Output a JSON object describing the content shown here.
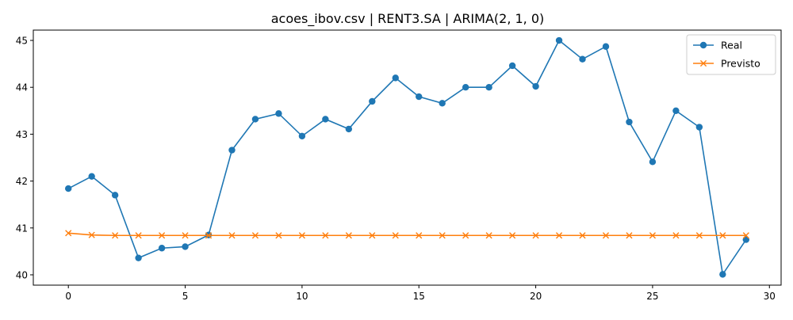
{
  "chart_data": {
    "type": "line",
    "title": "acoes_ibov.csv | RENT3.SA | ARIMA(2, 1, 0)",
    "xlabel": "",
    "ylabel": "",
    "xlim": [
      -1.5,
      30.5
    ],
    "ylim": [
      39.78,
      45.22
    ],
    "xticks": [
      0,
      5,
      10,
      15,
      20,
      25,
      30
    ],
    "yticks": [
      40,
      41,
      42,
      43,
      44,
      45
    ],
    "grid": false,
    "legend_position": "top-right",
    "x": [
      0,
      1,
      2,
      3,
      4,
      5,
      6,
      7,
      8,
      9,
      10,
      11,
      12,
      13,
      14,
      15,
      16,
      17,
      18,
      19,
      20,
      21,
      22,
      23,
      24,
      25,
      26,
      27,
      28,
      29
    ],
    "series": [
      {
        "name": "Real",
        "color": "#1f77b4",
        "marker": "circle",
        "values": [
          41.84,
          42.1,
          41.7,
          40.36,
          40.57,
          40.6,
          40.85,
          42.66,
          43.32,
          43.44,
          42.96,
          43.32,
          43.11,
          43.7,
          44.2,
          43.8,
          43.66,
          44.0,
          44.0,
          44.46,
          44.02,
          45.0,
          44.6,
          44.87,
          43.26,
          42.41,
          43.5,
          43.15,
          40.01,
          40.75
        ]
      },
      {
        "name": "Previsto",
        "color": "#ff7f0e",
        "marker": "x",
        "values": [
          40.89,
          40.85,
          40.84,
          40.84,
          40.84,
          40.84,
          40.84,
          40.84,
          40.84,
          40.84,
          40.84,
          40.84,
          40.84,
          40.84,
          40.84,
          40.84,
          40.84,
          40.84,
          40.84,
          40.84,
          40.84,
          40.84,
          40.84,
          40.84,
          40.84,
          40.84,
          40.84,
          40.84,
          40.84,
          40.84
        ]
      }
    ]
  }
}
